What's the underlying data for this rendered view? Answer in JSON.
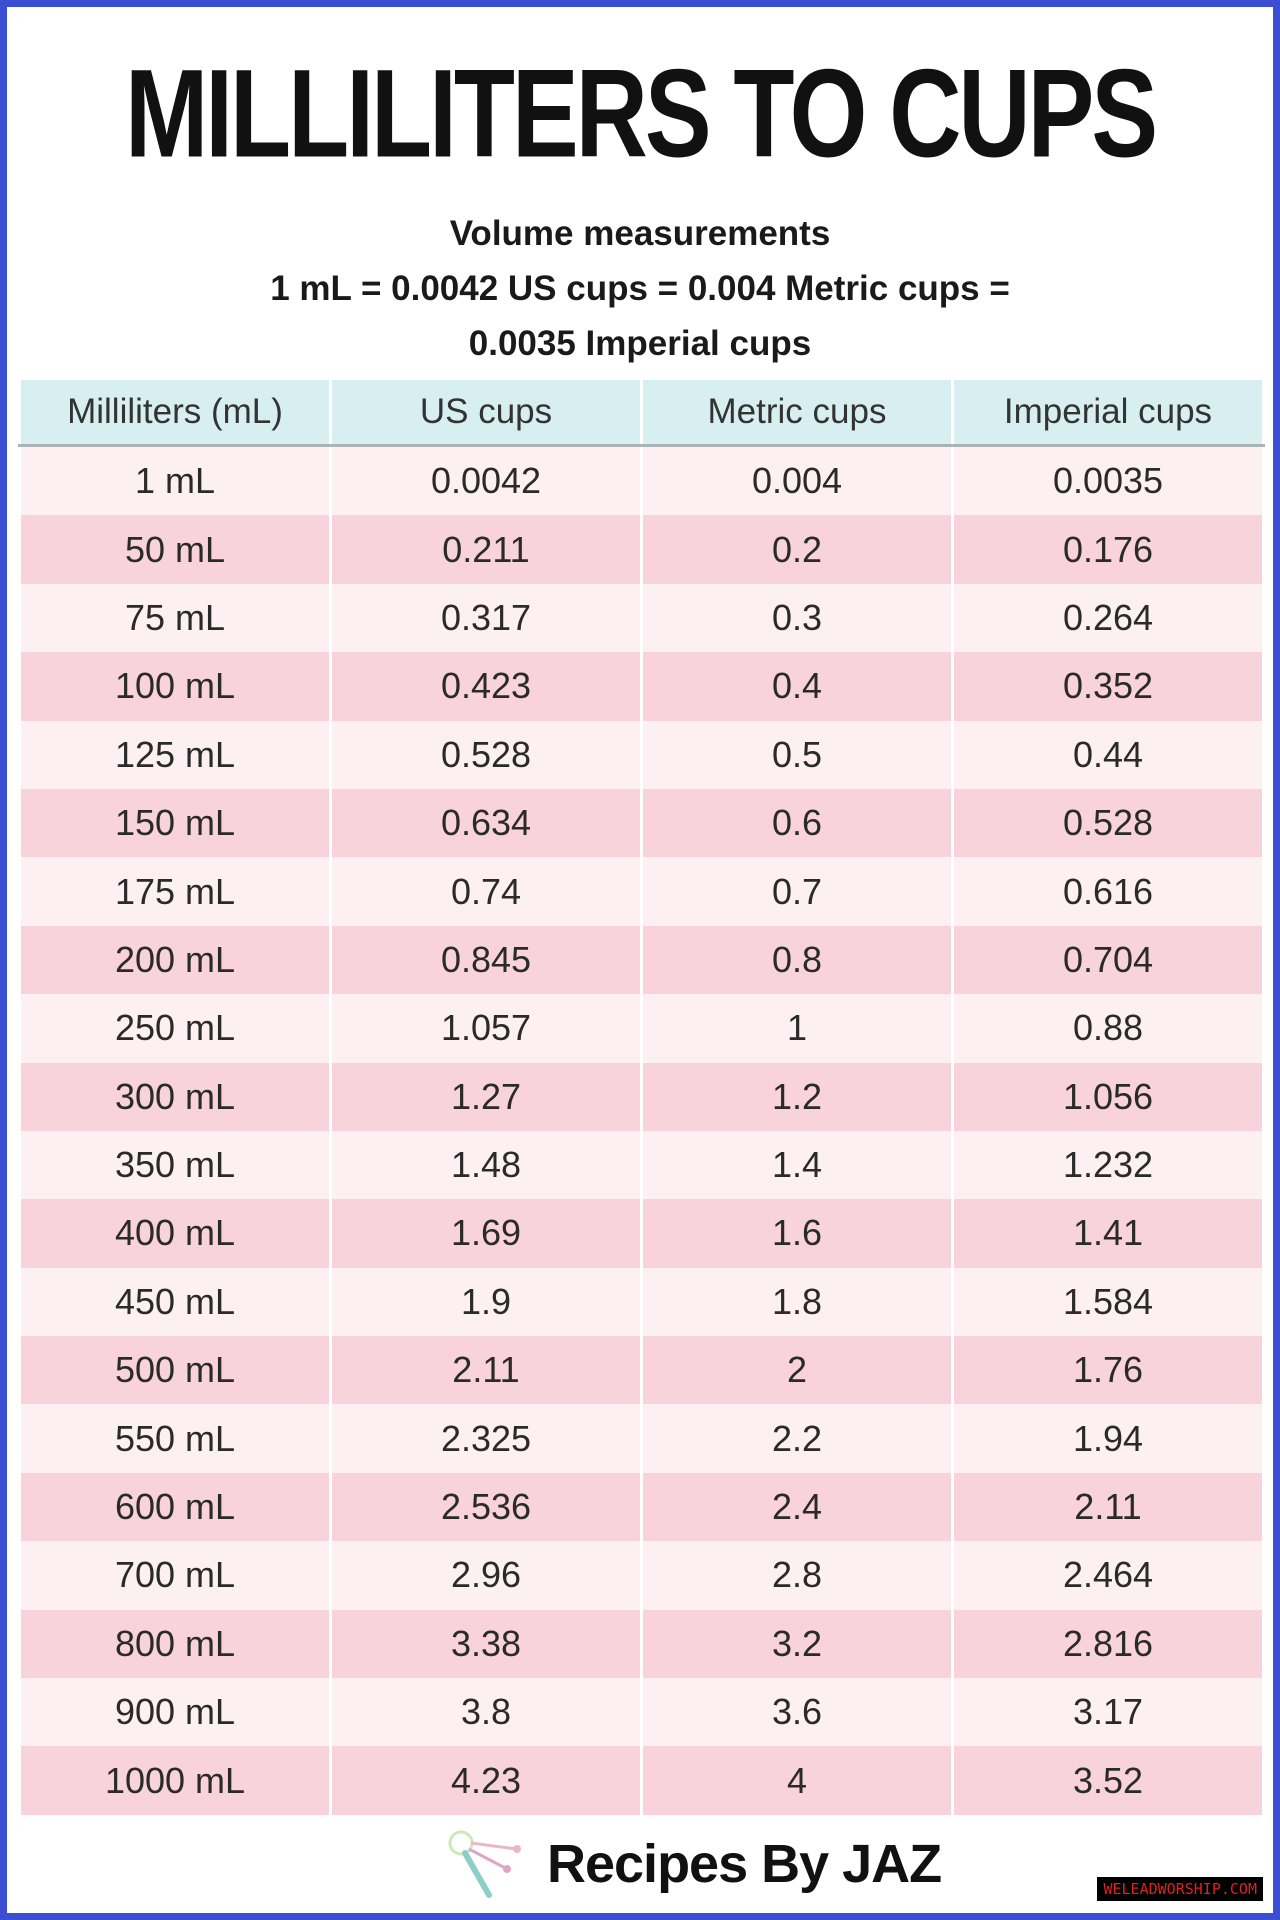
{
  "title": "MILLILITERS TO CUPS",
  "subtitle": {
    "line1": "Volume measurements",
    "line2": "1 mL = 0.0042 US cups = 0.004 Metric cups =",
    "line3": "0.0035 Imperial cups"
  },
  "table": {
    "headers": [
      "Milliliters (mL)",
      "US cups",
      "Metric cups",
      "Imperial cups"
    ],
    "rows": [
      [
        "1 mL",
        "0.0042",
        "0.004",
        "0.0035"
      ],
      [
        "50 mL",
        "0.211",
        "0.2",
        "0.176"
      ],
      [
        "75 mL",
        "0.317",
        "0.3",
        "0.264"
      ],
      [
        "100 mL",
        "0.423",
        "0.4",
        "0.352"
      ],
      [
        "125 mL",
        "0.528",
        "0.5",
        "0.44"
      ],
      [
        "150 mL",
        "0.634",
        "0.6",
        "0.528"
      ],
      [
        "175 mL",
        "0.74",
        "0.7",
        "0.616"
      ],
      [
        "200 mL",
        "0.845",
        "0.8",
        "0.704"
      ],
      [
        "250 mL",
        "1.057",
        "1",
        "0.88"
      ],
      [
        "300 mL",
        "1.27",
        "1.2",
        "1.056"
      ],
      [
        "350 mL",
        "1.48",
        "1.4",
        "1.232"
      ],
      [
        "400 mL",
        "1.69",
        "1.6",
        "1.41"
      ],
      [
        "450 mL",
        "1.9",
        "1.8",
        "1.584"
      ],
      [
        "500 mL",
        "2.11",
        "2",
        "1.76"
      ],
      [
        "550 mL",
        "2.325",
        "2.2",
        "1.94"
      ],
      [
        "600 mL",
        "2.536",
        "2.4",
        "2.11"
      ],
      [
        "700 mL",
        "2.96",
        "2.8",
        "2.464"
      ],
      [
        "800 mL",
        "3.38",
        "3.2",
        "2.816"
      ],
      [
        "900 mL",
        "3.8",
        "3.6",
        "3.17"
      ],
      [
        "1000 mL",
        "4.23",
        "4",
        "3.52"
      ]
    ]
  },
  "footer": {
    "brand": "Recipes By JAZ",
    "logo_icon": "whisk-icon"
  },
  "watermark": "WELEADWORSHIP.COM",
  "colors": {
    "border": "#3c4fd4",
    "header_bg": "#d8eff2",
    "row_light": "#fdf0f2",
    "row_pink": "#f8d3dc"
  }
}
